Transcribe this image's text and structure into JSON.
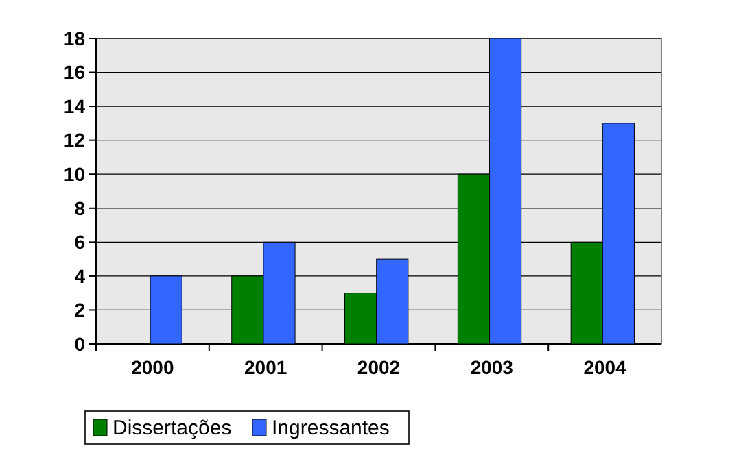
{
  "chart_data": {
    "type": "bar",
    "categories": [
      "2000",
      "2001",
      "2002",
      "2003",
      "2004"
    ],
    "series": [
      {
        "name": "Dissertações",
        "color": "#008000",
        "values": [
          0,
          4,
          3,
          10,
          6
        ]
      },
      {
        "name": "Ingressantes",
        "color": "#3366ff",
        "values": [
          4,
          6,
          5,
          18,
          13
        ]
      }
    ],
    "ylim": [
      0,
      18
    ],
    "yticks": [
      0,
      2,
      4,
      6,
      8,
      10,
      12,
      14,
      16,
      18
    ],
    "grid": "y",
    "legend": "bottom left"
  }
}
